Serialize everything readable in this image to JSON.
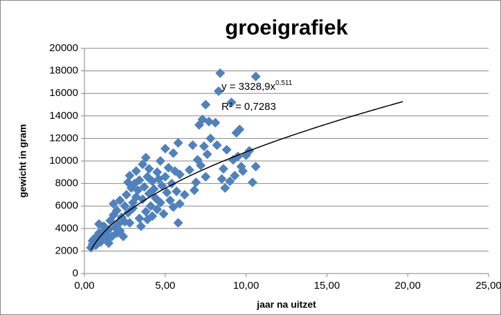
{
  "chart_data": {
    "type": "scatter",
    "title": "groeigrafiek",
    "x_label": "jaar na uitzet",
    "y_label": "gewicht in gram",
    "color": "#4f81bd",
    "grid": true,
    "xlim": [
      0,
      25
    ],
    "ylim": [
      0,
      20000
    ],
    "xticks": [
      {
        "value": 0,
        "label": "0,00"
      },
      {
        "value": 5,
        "label": "5,00"
      },
      {
        "value": 10,
        "label": "10,00"
      },
      {
        "value": 15,
        "label": "15,00"
      },
      {
        "value": 20,
        "label": "20,00"
      },
      {
        "value": 25,
        "label": "25,00"
      }
    ],
    "yticks": [
      0,
      2000,
      4000,
      6000,
      8000,
      10000,
      12000,
      14000,
      16000,
      18000,
      20000
    ],
    "x": [
      0.4,
      0.5,
      0.5,
      0.6,
      0.7,
      0.8,
      0.9,
      0.9,
      1.0,
      1.0,
      1.1,
      1.2,
      1.2,
      1.3,
      1.4,
      1.5,
      1.5,
      1.6,
      1.7,
      1.8,
      1.8,
      1.9,
      2.0,
      2.0,
      2.1,
      2.2,
      2.2,
      2.3,
      2.4,
      2.5,
      2.5,
      2.6,
      2.7,
      2.7,
      2.8,
      2.8,
      2.9,
      3.0,
      3.0,
      3.1,
      3.2,
      3.2,
      3.3,
      3.4,
      3.4,
      3.5,
      3.6,
      3.6,
      3.7,
      3.8,
      3.8,
      3.9,
      3.9,
      4.0,
      4.0,
      4.1,
      4.2,
      4.2,
      4.3,
      4.4,
      4.5,
      4.5,
      4.6,
      4.7,
      4.7,
      4.8,
      4.9,
      5.0,
      5.0,
      5.1,
      5.2,
      5.3,
      5.4,
      5.5,
      5.5,
      5.6,
      5.7,
      5.8,
      5.8,
      5.9,
      5.9,
      6.2,
      6.5,
      6.7,
      6.8,
      6.9,
      7.0,
      7.1,
      7.2,
      7.3,
      7.4,
      7.5,
      7.5,
      7.6,
      7.7,
      7.8,
      8.1,
      8.2,
      8.3,
      8.4,
      8.5,
      8.6,
      8.7,
      8.8,
      9.0,
      9.1,
      9.2,
      9.3,
      9.4,
      9.5,
      9.6,
      9.7,
      9.8,
      10.0,
      10.2,
      10.4,
      10.6,
      10.6
    ],
    "values": [
      2300,
      2600,
      2900,
      3100,
      2500,
      3300,
      3600,
      4400,
      3000,
      2800,
      3400,
      3800,
      4200,
      3500,
      3100,
      2700,
      3900,
      4700,
      3300,
      5200,
      6200,
      4100,
      3600,
      5600,
      4400,
      3800,
      6500,
      5000,
      3300,
      4600,
      6000,
      7000,
      8100,
      5400,
      4500,
      8700,
      7600,
      6300,
      5800,
      8000,
      9100,
      6800,
      7400,
      8300,
      4900,
      4200,
      9700,
      6600,
      7700,
      10300,
      5500,
      8600,
      4800,
      7100,
      9300,
      6000,
      8200,
      5100,
      7500,
      6700,
      9000,
      5700,
      8400,
      10000,
      6300,
      7800,
      5300,
      8600,
      11100,
      7200,
      9400,
      6500,
      8000,
      10700,
      5900,
      9100,
      7300,
      11600,
      4500,
      8800,
      6200,
      7000,
      9200,
      11400,
      7400,
      8100,
      10100,
      13200,
      9600,
      13700,
      11300,
      15000,
      8600,
      10600,
      13500,
      12000,
      13400,
      11400,
      16200,
      17800,
      8400,
      9300,
      7600,
      11000,
      8200,
      15200,
      10100,
      8700,
      12500,
      10400,
      12800,
      9500,
      9100,
      10500,
      10900,
      8100,
      9500,
      17500
    ],
    "trendline": {
      "coefficient": 3328.9,
      "exponent": 0.511,
      "x_range": [
        0.4,
        19.7
      ],
      "color": "#000000",
      "equation_label": "y = 3328,9x",
      "exponent_label": "0,511",
      "r2_label": "R² = 0,7283"
    }
  }
}
